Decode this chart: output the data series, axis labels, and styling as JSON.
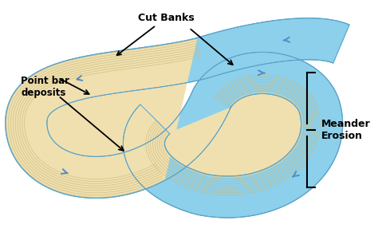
{
  "background_color": "#ffffff",
  "river_blue": "#87CEEB",
  "river_blue_dark": "#5BA3C9",
  "sand_color": "#F0E0B0",
  "sand_dark": "#C8B878",
  "arrow_color": "#4A90C4",
  "label_color": "#000000",
  "labels": {
    "cut_banks": "Cut Banks",
    "point_bar": "Point bar\ndeposits",
    "meander_erosion": "Meander\nErosion"
  }
}
